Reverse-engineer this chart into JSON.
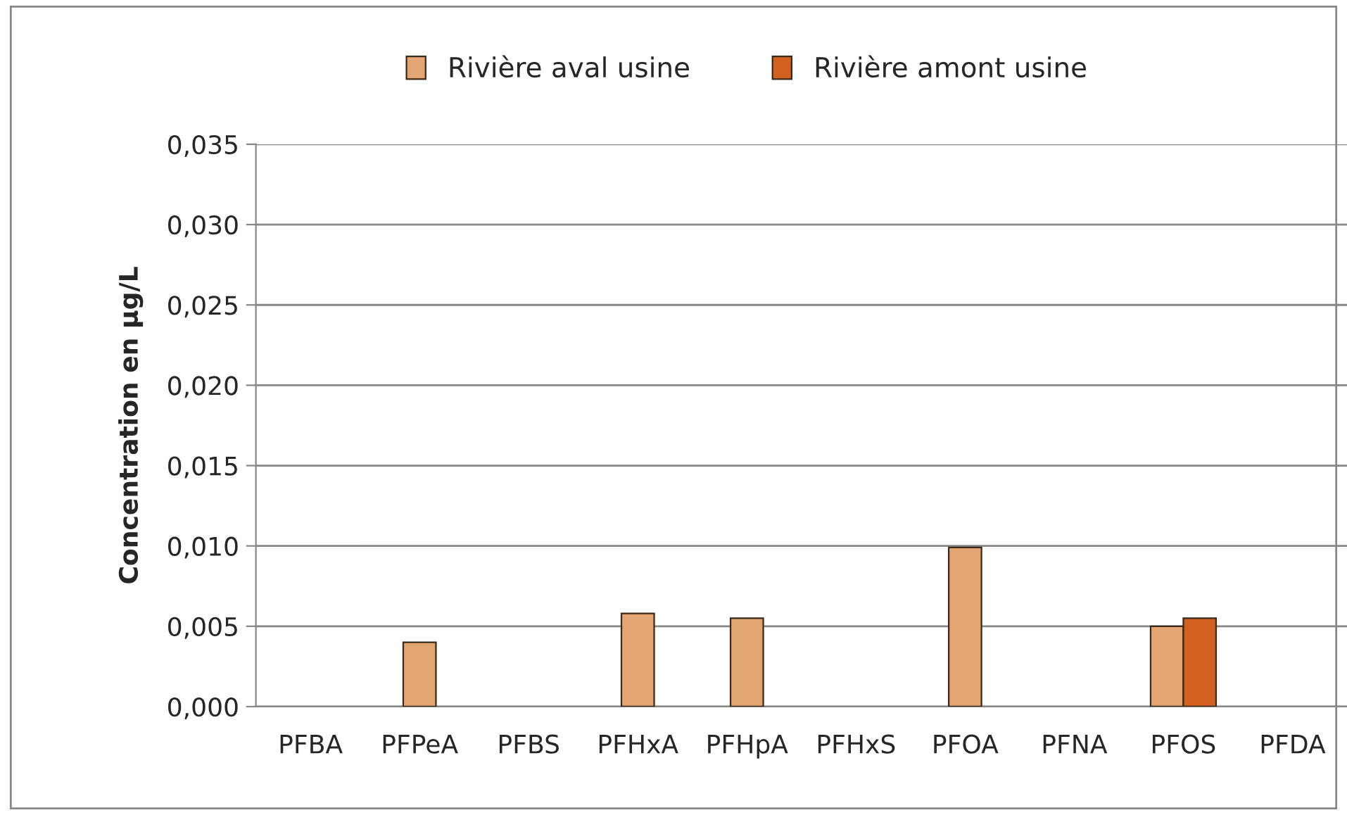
{
  "chart_data": {
    "type": "bar",
    "ylabel": "Concentration en µg/L",
    "categories": [
      "PFBA",
      "PFPeA",
      "PFBS",
      "PFHxA",
      "PFHpA",
      "PFHxS",
      "PFOA",
      "PFNA",
      "PFOS",
      "PFDA"
    ],
    "series": [
      {
        "name": "Rivière aval usine",
        "color": "#e3a572",
        "values": [
          null,
          0.004,
          null,
          0.0058,
          0.0055,
          null,
          0.0099,
          null,
          0.005,
          null
        ]
      },
      {
        "name": "Rivière amont usine",
        "color": "#d2611f",
        "values": [
          null,
          null,
          null,
          null,
          null,
          null,
          null,
          null,
          0.0055,
          null
        ]
      }
    ],
    "ylim": [
      0,
      0.035
    ],
    "yticks": [
      {
        "value": 0,
        "label": "0,000"
      },
      {
        "value": 0.005,
        "label": "0,005"
      },
      {
        "value": 0.01,
        "label": "0,010"
      },
      {
        "value": 0.015,
        "label": "0,015"
      },
      {
        "value": 0.02,
        "label": "0,020"
      },
      {
        "value": 0.025,
        "label": "0,025"
      },
      {
        "value": 0.03,
        "label": "0,030"
      },
      {
        "value": 0.035,
        "label": "0,035"
      }
    ],
    "grid": "y",
    "legend": "top"
  }
}
